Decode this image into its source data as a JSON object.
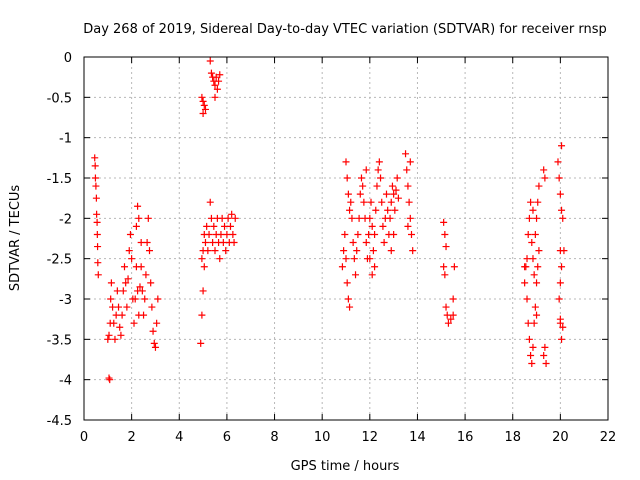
{
  "chart_data": {
    "type": "scatter",
    "title": "Day 268 of 2019, Sidereal Day-to-day VTEC variation (SDTVAR) for receiver rnsp",
    "xlabel": "GPS time / hours",
    "ylabel": "SDTVAR / TECUs",
    "xlim": [
      0,
      22
    ],
    "ylim": [
      -4.5,
      0
    ],
    "x_ticks": [
      0,
      2,
      4,
      6,
      8,
      10,
      12,
      14,
      16,
      18,
      20,
      22
    ],
    "y_ticks": [
      0,
      -0.5,
      -1,
      -1.5,
      -2,
      -2.5,
      -3,
      -3.5,
      -4,
      -4.5
    ],
    "x_tick_labels": [
      "0",
      "2",
      "4",
      "6",
      "8",
      "10",
      "12",
      "14",
      "16",
      "18",
      "20",
      "22"
    ],
    "y_tick_labels": [
      "0",
      "-0.5",
      "-1",
      "-1.5",
      "-2",
      "-2.5",
      "-3",
      "-3.5",
      "-4",
      "-4.5"
    ],
    "grid": true,
    "marker": "plus",
    "marker_color": "#ff0000",
    "series": [
      {
        "name": "rnsp",
        "points": [
          [
            0.45,
            -1.25
          ],
          [
            0.47,
            -1.35
          ],
          [
            0.48,
            -1.5
          ],
          [
            0.5,
            -1.6
          ],
          [
            0.52,
            -1.75
          ],
          [
            0.53,
            -1.95
          ],
          [
            0.55,
            -2.05
          ],
          [
            0.56,
            -2.2
          ],
          [
            0.57,
            -2.35
          ],
          [
            0.58,
            -2.55
          ],
          [
            0.6,
            -2.7
          ],
          [
            1.0,
            -3.5
          ],
          [
            1.05,
            -3.45
          ],
          [
            1.1,
            -3.3
          ],
          [
            1.12,
            -3.0
          ],
          [
            1.15,
            -2.8
          ],
          [
            1.2,
            -3.1
          ],
          [
            1.25,
            -3.3
          ],
          [
            1.3,
            -3.5
          ],
          [
            1.35,
            -3.2
          ],
          [
            1.4,
            -2.9
          ],
          [
            1.45,
            -3.1
          ],
          [
            1.5,
            -3.35
          ],
          [
            1.55,
            -3.45
          ],
          [
            1.6,
            -3.2
          ],
          [
            1.65,
            -2.9
          ],
          [
            1.7,
            -2.6
          ],
          [
            1.75,
            -2.8
          ],
          [
            1.8,
            -3.1
          ],
          [
            1.85,
            -2.75
          ],
          [
            1.9,
            -2.4
          ],
          [
            1.95,
            -2.2
          ],
          [
            2.0,
            -2.5
          ],
          [
            2.05,
            -3.0
          ],
          [
            2.1,
            -3.3
          ],
          [
            2.15,
            -3.0
          ],
          [
            2.2,
            -2.6
          ],
          [
            2.25,
            -2.9
          ],
          [
            2.3,
            -3.2
          ],
          [
            2.35,
            -2.85
          ],
          [
            2.4,
            -2.6
          ],
          [
            2.45,
            -2.9
          ],
          [
            2.5,
            -3.2
          ],
          [
            2.55,
            -3.0
          ],
          [
            2.6,
            -2.7
          ],
          [
            2.65,
            -2.3
          ],
          [
            2.7,
            -2.0
          ],
          [
            2.75,
            -2.4
          ],
          [
            2.8,
            -2.8
          ],
          [
            2.85,
            -3.1
          ],
          [
            2.9,
            -3.4
          ],
          [
            2.95,
            -3.55
          ],
          [
            3.0,
            -3.6
          ],
          [
            3.05,
            -3.3
          ],
          [
            3.1,
            -3.0
          ],
          [
            1.05,
            -3.98
          ],
          [
            1.08,
            -4.0
          ],
          [
            2.25,
            -1.85
          ],
          [
            2.3,
            -2.0
          ],
          [
            2.4,
            -2.3
          ],
          [
            2.2,
            -2.1
          ],
          [
            4.9,
            -3.55
          ],
          [
            4.95,
            -3.2
          ],
          [
            5.0,
            -2.9
          ],
          [
            5.05,
            -2.6
          ],
          [
            5.0,
            -2.4
          ],
          [
            5.05,
            -2.2
          ],
          [
            4.95,
            -2.5
          ],
          [
            5.1,
            -2.3
          ],
          [
            5.15,
            -2.1
          ],
          [
            5.2,
            -2.4
          ],
          [
            5.25,
            -2.2
          ],
          [
            5.3,
            -1.8
          ],
          [
            5.35,
            -2.0
          ],
          [
            5.4,
            -2.3
          ],
          [
            5.45,
            -2.1
          ],
          [
            5.5,
            -2.4
          ],
          [
            5.55,
            -2.2
          ],
          [
            5.6,
            -2.0
          ],
          [
            5.65,
            -2.3
          ],
          [
            5.7,
            -2.5
          ],
          [
            5.75,
            -2.2
          ],
          [
            5.8,
            -2.0
          ],
          [
            5.85,
            -2.3
          ],
          [
            5.9,
            -2.1
          ],
          [
            5.95,
            -2.4
          ],
          [
            6.0,
            -2.2
          ],
          [
            6.05,
            -2.0
          ],
          [
            6.1,
            -2.3
          ],
          [
            6.15,
            -2.1
          ],
          [
            6.2,
            -1.95
          ],
          [
            6.25,
            -2.2
          ],
          [
            6.3,
            -2.3
          ],
          [
            6.35,
            -2.0
          ],
          [
            4.95,
            -0.5
          ],
          [
            5.0,
            -0.55
          ],
          [
            5.05,
            -0.6
          ],
          [
            5.1,
            -0.65
          ],
          [
            5.0,
            -0.7
          ],
          [
            5.35,
            -0.2
          ],
          [
            5.4,
            -0.25
          ],
          [
            5.45,
            -0.3
          ],
          [
            5.5,
            -0.35
          ],
          [
            5.55,
            -0.25
          ],
          [
            5.6,
            -0.4
          ],
          [
            5.65,
            -0.3
          ],
          [
            5.7,
            -0.22
          ],
          [
            5.3,
            -0.05
          ],
          [
            5.5,
            -0.5
          ],
          [
            10.85,
            -2.6
          ],
          [
            10.9,
            -2.4
          ],
          [
            10.95,
            -2.2
          ],
          [
            11.0,
            -2.5
          ],
          [
            11.05,
            -2.8
          ],
          [
            11.1,
            -3.0
          ],
          [
            11.15,
            -3.1
          ],
          [
            11.0,
            -1.3
          ],
          [
            11.05,
            -1.5
          ],
          [
            11.1,
            -1.7
          ],
          [
            11.15,
            -1.9
          ],
          [
            11.2,
            -1.8
          ],
          [
            11.25,
            -2.0
          ],
          [
            11.3,
            -2.3
          ],
          [
            11.35,
            -2.5
          ],
          [
            11.4,
            -2.7
          ],
          [
            11.45,
            -2.4
          ],
          [
            11.5,
            -2.2
          ],
          [
            11.55,
            -2.0
          ],
          [
            11.6,
            -1.7
          ],
          [
            11.65,
            -1.5
          ],
          [
            11.7,
            -1.6
          ],
          [
            11.75,
            -1.8
          ],
          [
            11.8,
            -2.0
          ],
          [
            11.85,
            -2.3
          ],
          [
            11.9,
            -2.5
          ],
          [
            11.95,
            -2.2
          ],
          [
            12.0,
            -2.0
          ],
          [
            12.05,
            -1.8
          ],
          [
            12.1,
            -2.1
          ],
          [
            12.15,
            -2.4
          ],
          [
            12.2,
            -2.2
          ],
          [
            12.25,
            -1.9
          ],
          [
            12.3,
            -1.6
          ],
          [
            12.35,
            -1.4
          ],
          [
            12.4,
            -1.3
          ],
          [
            12.45,
            -1.5
          ],
          [
            12.5,
            -1.8
          ],
          [
            12.55,
            -2.1
          ],
          [
            12.6,
            -2.3
          ],
          [
            12.65,
            -2.0
          ],
          [
            12.7,
            -1.7
          ],
          [
            12.75,
            -1.9
          ],
          [
            12.8,
            -2.2
          ],
          [
            12.85,
            -2.0
          ],
          [
            12.9,
            -1.8
          ],
          [
            12.95,
            -1.6
          ],
          [
            13.0,
            -1.7
          ],
          [
            13.05,
            -1.9
          ],
          [
            13.1,
            -1.65
          ],
          [
            13.15,
            -1.5
          ],
          [
            13.2,
            -1.75
          ],
          [
            13.0,
            -2.2
          ],
          [
            12.9,
            -2.4
          ],
          [
            13.5,
            -1.2
          ],
          [
            13.55,
            -1.4
          ],
          [
            13.6,
            -1.6
          ],
          [
            13.65,
            -1.8
          ],
          [
            13.7,
            -2.0
          ],
          [
            13.75,
            -2.2
          ],
          [
            13.8,
            -2.4
          ],
          [
            13.7,
            -1.3
          ],
          [
            13.6,
            -2.1
          ],
          [
            12.2,
            -2.6
          ],
          [
            12.1,
            -2.7
          ],
          [
            12.0,
            -2.5
          ],
          [
            11.85,
            -1.4
          ],
          [
            15.1,
            -2.05
          ],
          [
            15.15,
            -2.2
          ],
          [
            15.2,
            -2.35
          ],
          [
            15.1,
            -2.6
          ],
          [
            15.15,
            -2.7
          ],
          [
            15.2,
            -3.1
          ],
          [
            15.25,
            -3.2
          ],
          [
            15.3,
            -3.3
          ],
          [
            15.4,
            -3.25
          ],
          [
            15.5,
            -3.2
          ],
          [
            15.5,
            -3.0
          ],
          [
            15.55,
            -2.6
          ],
          [
            18.5,
            -2.8
          ],
          [
            18.55,
            -2.6
          ],
          [
            18.6,
            -2.5
          ],
          [
            18.65,
            -2.2
          ],
          [
            18.7,
            -2.0
          ],
          [
            18.75,
            -1.8
          ],
          [
            18.6,
            -3.0
          ],
          [
            18.65,
            -3.3
          ],
          [
            18.7,
            -3.5
          ],
          [
            18.75,
            -3.7
          ],
          [
            18.8,
            -3.8
          ],
          [
            18.85,
            -3.6
          ],
          [
            18.9,
            -3.3
          ],
          [
            18.95,
            -3.1
          ],
          [
            19.0,
            -2.8
          ],
          [
            19.05,
            -2.6
          ],
          [
            19.1,
            -2.4
          ],
          [
            18.9,
            -2.7
          ],
          [
            18.95,
            -2.2
          ],
          [
            19.0,
            -2.0
          ],
          [
            19.05,
            -1.8
          ],
          [
            19.1,
            -1.6
          ],
          [
            18.8,
            -2.3
          ],
          [
            18.85,
            -2.5
          ],
          [
            18.85,
            -1.9
          ],
          [
            19.3,
            -1.4
          ],
          [
            19.35,
            -1.5
          ],
          [
            19.3,
            -3.7
          ],
          [
            19.35,
            -3.6
          ],
          [
            19.4,
            -3.8
          ],
          [
            19.0,
            -3.2
          ],
          [
            18.5,
            -2.6
          ],
          [
            19.9,
            -1.3
          ],
          [
            19.95,
            -1.5
          ],
          [
            20.0,
            -1.7
          ],
          [
            20.05,
            -1.9
          ],
          [
            20.1,
            -2.0
          ],
          [
            20.05,
            -1.1
          ],
          [
            20.0,
            -2.4
          ],
          [
            20.05,
            -2.6
          ],
          [
            20.0,
            -2.8
          ],
          [
            19.95,
            -3.0
          ],
          [
            20.0,
            -3.3
          ],
          [
            20.05,
            -3.5
          ],
          [
            20.1,
            -3.35
          ],
          [
            20.0,
            -3.25
          ],
          [
            20.15,
            -2.4
          ]
        ]
      }
    ]
  }
}
